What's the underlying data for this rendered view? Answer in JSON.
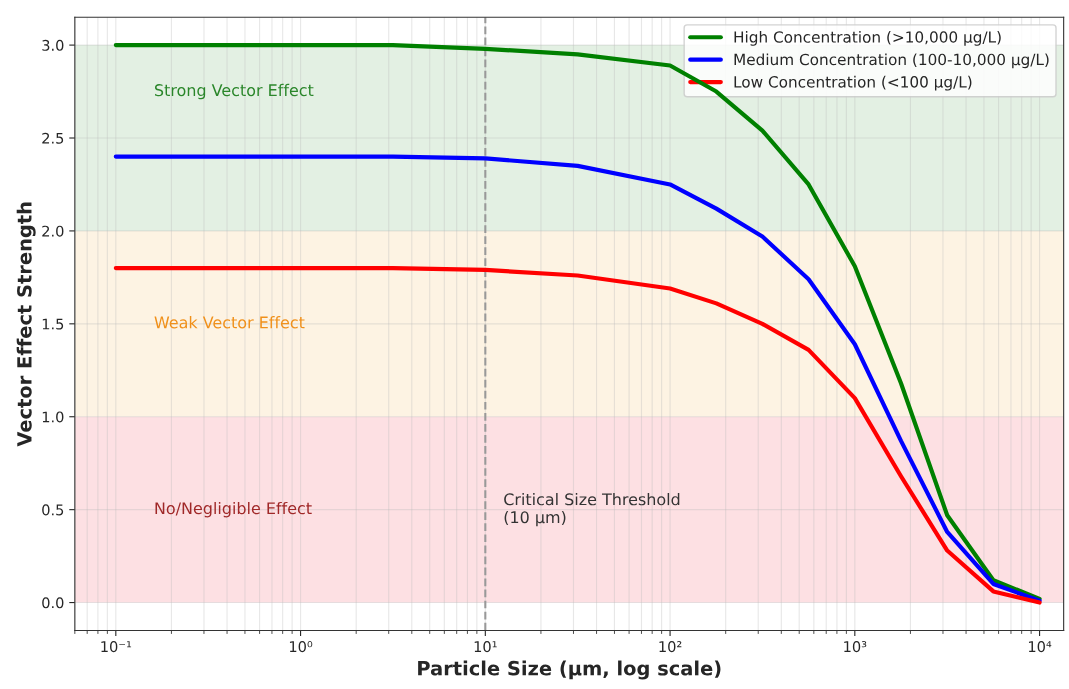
{
  "chart_data": {
    "type": "line",
    "xlabel": "Particle Size (µm, log scale)",
    "ylabel": "Vector Effect Strength",
    "log": "x",
    "grid": true,
    "legend": "top right",
    "line_style": "solid",
    "xlim": [
      0.06,
      13500
    ],
    "ylim": [
      -0.15,
      3.15
    ],
    "xticks": [
      {
        "value": 0.1,
        "label": "10⁻¹"
      },
      {
        "value": 1,
        "label": "10⁰"
      },
      {
        "value": 10,
        "label": "10¹"
      },
      {
        "value": 100,
        "label": "10²"
      },
      {
        "value": 1000,
        "label": "10³"
      },
      {
        "value": 10000,
        "label": "10⁴"
      }
    ],
    "yticks": [
      {
        "value": 0,
        "label": "0.0"
      },
      {
        "value": 0.5,
        "label": "0.5"
      },
      {
        "value": 1,
        "label": "1.0"
      },
      {
        "value": 1.5,
        "label": "1.5"
      },
      {
        "value": 2,
        "label": "2.0"
      },
      {
        "value": 2.5,
        "label": "2.5"
      },
      {
        "value": 3,
        "label": "3.0"
      }
    ],
    "x": [
      0.1,
      1,
      3.16,
      10,
      31.6,
      100,
      178,
      316,
      562,
      1000,
      1778,
      3162,
      5623,
      10000
    ],
    "series": [
      {
        "name": "High Concentration (>10,000 µg/L)",
        "color": "#008000",
        "values": [
          3.0,
          3.0,
          3.0,
          2.98,
          2.95,
          2.89,
          2.75,
          2.54,
          2.25,
          1.81,
          1.18,
          0.47,
          0.12,
          0.02
        ]
      },
      {
        "name": "Medium Concentration (100-10,000 µg/L)",
        "color": "#0000ff",
        "values": [
          2.4,
          2.4,
          2.4,
          2.39,
          2.35,
          2.25,
          2.12,
          1.97,
          1.74,
          1.39,
          0.87,
          0.38,
          0.1,
          0.01
        ]
      },
      {
        "name": "Low Concentration (<100 µg/L)",
        "color": "#ff0000",
        "values": [
          1.8,
          1.8,
          1.8,
          1.79,
          1.76,
          1.69,
          1.61,
          1.5,
          1.36,
          1.1,
          0.68,
          0.28,
          0.06,
          0.0
        ]
      }
    ],
    "bands": [
      {
        "axis": "y",
        "from": 2,
        "to": 3,
        "label": "Strong Vector Effect",
        "color": "#e3f0e3"
      },
      {
        "axis": "y",
        "from": 1,
        "to": 2,
        "label": "Weak Vector Effect",
        "color": "#fdf3e3"
      },
      {
        "axis": "y",
        "from": 0,
        "to": 1,
        "label": "No/Negligible Effect",
        "color": "#fde0e3"
      }
    ],
    "ref_lines": [
      {
        "axis": "x",
        "value": 10,
        "label": "Critical Size Threshold\n(10 µm)",
        "color": "#999999",
        "line_style": "dashed"
      }
    ]
  }
}
